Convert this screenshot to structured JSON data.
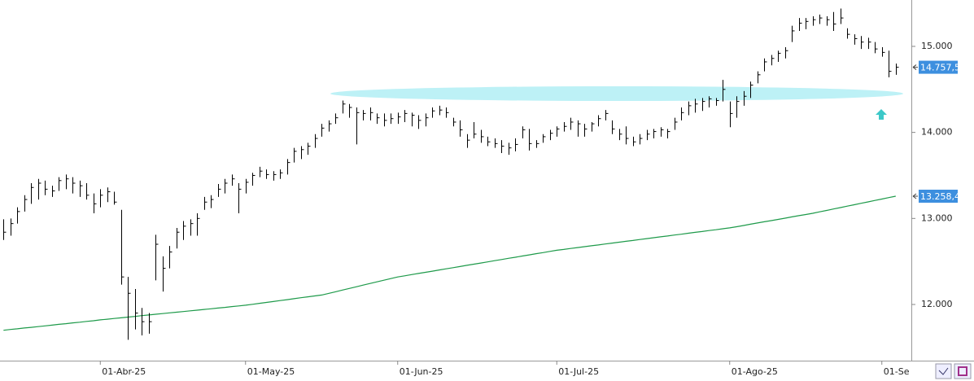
{
  "chart_data": {
    "type": "ohlc",
    "categories": [
      null,
      null,
      null,
      null,
      null,
      null,
      null,
      null,
      null,
      null,
      null,
      null,
      null,
      null,
      "01-Abr-25",
      null,
      null,
      null,
      null,
      null,
      null,
      null,
      null,
      null,
      null,
      null,
      null,
      null,
      null,
      null,
      null,
      null,
      null,
      null,
      null,
      "01-May-25",
      null,
      null,
      null,
      null,
      null,
      null,
      null,
      null,
      null,
      null,
      null,
      null,
      null,
      null,
      null,
      null,
      null,
      null,
      null,
      null,
      null,
      "01-Jun-25",
      null,
      null,
      null,
      null,
      null,
      null,
      null,
      null,
      null,
      null,
      null,
      null,
      null,
      null,
      null,
      null,
      null,
      null,
      null,
      null,
      null,
      null,
      "01-Jul-25",
      null,
      null,
      null,
      null,
      null,
      null,
      null,
      null,
      null,
      null,
      null,
      null,
      null,
      null,
      null,
      null,
      null,
      null,
      null,
      null,
      null,
      null,
      null,
      null,
      "01-Ago-25",
      null,
      null,
      null,
      null,
      null,
      null,
      null,
      null,
      null,
      null,
      null,
      null,
      null,
      null,
      null,
      null,
      null,
      null,
      null,
      null,
      null,
      "01-Se",
      null,
      null
    ],
    "high": [
      12990,
      13000,
      13130,
      13270,
      13410,
      13460,
      13440,
      13380,
      13480,
      13510,
      13480,
      13440,
      13410,
      13290,
      13340,
      13360,
      13310,
      13100,
      12320,
      12180,
      11960,
      11900,
      12810,
      12560,
      12680,
      12890,
      12970,
      12990,
      13060,
      13250,
      13270,
      13400,
      13460,
      13510,
      13410,
      13460,
      13530,
      13600,
      13570,
      13550,
      13570,
      13690,
      13820,
      13840,
      13880,
      13980,
      14100,
      14140,
      14220,
      14370,
      14330,
      14290,
      14260,
      14290,
      14220,
      14220,
      14220,
      14230,
      14260,
      14230,
      14200,
      14220,
      14290,
      14310,
      14290,
      14170,
      14140,
      13980,
      14120,
      14030,
      13950,
      13930,
      13910,
      13880,
      13930,
      14070,
      14040,
      13910,
      13980,
      14030,
      14070,
      14120,
      14170,
      14140,
      14100,
      14120,
      14200,
      14260,
      14140,
      14040,
      14070,
      13950,
      13980,
      14030,
      14040,
      14060,
      14040,
      14170,
      14290,
      14360,
      14390,
      14400,
      14420,
      14400,
      14610,
      14360,
      14420,
      14480,
      14590,
      14710,
      14860,
      14900,
      14950,
      14990,
      15240,
      15330,
      15330,
      15350,
      15370,
      15350,
      15400,
      15440,
      15210,
      15140,
      15120,
      15100,
      15050,
      14990,
      14950,
      14800
    ],
    "low": [
      12750,
      12800,
      12940,
      13080,
      13170,
      13220,
      13270,
      13250,
      13320,
      13340,
      13290,
      13250,
      13220,
      13060,
      13130,
      13190,
      13160,
      12230,
      11590,
      11710,
      11640,
      11660,
      12280,
      12150,
      12420,
      12650,
      12750,
      12800,
      12800,
      13100,
      13120,
      13250,
      13290,
      13380,
      13060,
      13290,
      13380,
      13480,
      13460,
      13440,
      13460,
      13510,
      13650,
      13690,
      13740,
      13820,
      13950,
      14010,
      14100,
      14220,
      14170,
      13860,
      14140,
      14140,
      14100,
      14070,
      14100,
      14100,
      14120,
      14070,
      14040,
      14070,
      14170,
      14200,
      14170,
      14070,
      13950,
      13820,
      13930,
      13880,
      13840,
      13820,
      13760,
      13740,
      13780,
      13930,
      13790,
      13820,
      13880,
      13910,
      13950,
      14010,
      14030,
      13950,
      13950,
      14010,
      14070,
      14140,
      13980,
      13910,
      13860,
      13840,
      13860,
      13910,
      13930,
      13950,
      13930,
      14030,
      14140,
      14200,
      14230,
      14250,
      14290,
      14310,
      14360,
      14060,
      14170,
      14310,
      14400,
      14570,
      14710,
      14780,
      14820,
      14860,
      15050,
      15180,
      15200,
      15240,
      15260,
      15240,
      15180,
      15260,
      15090,
      15020,
      14970,
      14970,
      14920,
      14880,
      14640,
      14670
    ],
    "close": [
      12840,
      12940,
      13080,
      13220,
      13360,
      13410,
      13340,
      13320,
      13440,
      13460,
      13410,
      13380,
      13270,
      13170,
      13270,
      13310,
      13190,
      12320,
      12130,
      11900,
      11800,
      11800,
      12700,
      12420,
      12610,
      12840,
      12910,
      12940,
      13000,
      13190,
      13220,
      13340,
      13410,
      13460,
      13340,
      13420,
      13500,
      13550,
      13510,
      13510,
      13530,
      13650,
      13780,
      13800,
      13840,
      13930,
      14050,
      14100,
      14170,
      14330,
      14290,
      14230,
      14220,
      14230,
      14170,
      14140,
      14160,
      14180,
      14220,
      14200,
      14140,
      14170,
      14250,
      14260,
      14230,
      14120,
      14030,
      13910,
      13980,
      13950,
      13890,
      13870,
      13840,
      13820,
      13860,
      14030,
      13870,
      13870,
      13950,
      13990,
      14040,
      14070,
      14120,
      14100,
      14040,
      14100,
      14160,
      14220,
      14040,
      13980,
      13930,
      13890,
      13930,
      13980,
      14010,
      14030,
      14010,
      14120,
      14230,
      14310,
      14330,
      14360,
      14390,
      14370,
      14500,
      14220,
      14360,
      14420,
      14550,
      14670,
      14820,
      14860,
      14920,
      14950,
      15180,
      15270,
      15290,
      15310,
      15330,
      15310,
      15260,
      15330,
      15140,
      15090,
      15050,
      15050,
      14970,
      14930,
      14710,
      14757.5
    ],
    "bar_color": "#000000",
    "lines": [
      {
        "color": "#1e9a4a",
        "values": [
          11700,
          11709,
          11717,
          11726,
          11734,
          11743,
          11751,
          11760,
          11769,
          11777,
          11786,
          11794,
          11803,
          11811,
          11821,
          11829,
          11837,
          11845,
          11853,
          11861,
          11870,
          11878,
          11886,
          11894,
          11902,
          11910,
          11918,
          11926,
          11934,
          11942,
          11950,
          11958,
          11966,
          11975,
          11983,
          11991,
          12002,
          12013,
          12024,
          12034,
          12045,
          12056,
          12067,
          12078,
          12089,
          12099,
          12110,
          12129,
          12148,
          12167,
          12186,
          12205,
          12225,
          12244,
          12263,
          12282,
          12301,
          12320,
          12333,
          12347,
          12360,
          12374,
          12387,
          12401,
          12414,
          12428,
          12441,
          12455,
          12468,
          12482,
          12495,
          12509,
          12522,
          12536,
          12549,
          12563,
          12576,
          12590,
          12603,
          12617,
          12630,
          12640,
          12651,
          12661,
          12672,
          12682,
          12692,
          12703,
          12713,
          12724,
          12734,
          12744,
          12755,
          12765,
          12776,
          12786,
          12796,
          12807,
          12817,
          12828,
          12838,
          12848,
          12859,
          12869,
          12880,
          12890,
          12904,
          12918,
          12933,
          12947,
          12961,
          12975,
          12989,
          13003,
          13018,
          13032,
          13046,
          13060,
          13077,
          13093,
          13110,
          13126,
          13143,
          13159,
          13176,
          13192,
          13209,
          13225,
          13242,
          13258.4
        ]
      }
    ],
    "price_tags": [
      {
        "value": 14757.5,
        "label": "14.757,5"
      },
      {
        "value": 13258.4,
        "label": "13.258,4"
      }
    ],
    "tag_color": "#3d8fdf",
    "ylim": [
      11347,
      15539
    ],
    "yticks": [
      {
        "value": 12000,
        "label": "12.000"
      },
      {
        "value": 13000,
        "label": "13.000"
      },
      {
        "value": 14000,
        "label": "14.000"
      },
      {
        "value": 15000,
        "label": "15.000"
      }
    ]
  }
}
